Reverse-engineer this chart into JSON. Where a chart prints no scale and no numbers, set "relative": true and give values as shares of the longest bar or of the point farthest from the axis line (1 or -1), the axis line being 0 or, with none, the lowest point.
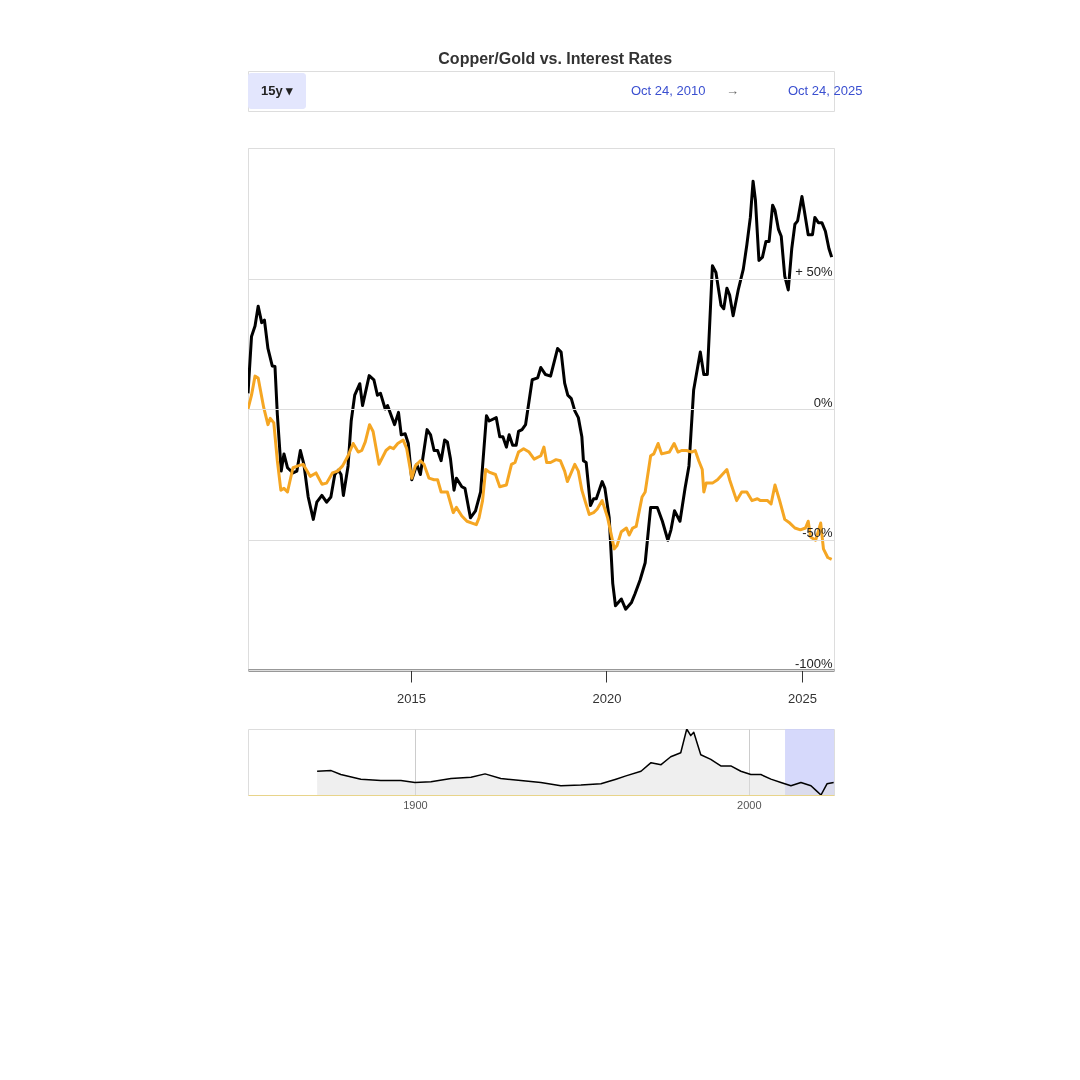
{
  "chart_data": [
    {
      "type": "line",
      "title": "Copper/Gold vs. Interest Rates",
      "annotations": [
        "15y ▾",
        "Oct 24, 2010",
        "→",
        "Oct 24, 2025"
      ],
      "xlim": [
        2010.83,
        2025.82
      ],
      "xticks": [
        2015,
        2020,
        2025
      ],
      "ylim": [
        -100,
        100
      ],
      "yticks": [
        {
          "value": -100,
          "label": "-100%"
        },
        {
          "value": -50,
          "label": "-50%"
        },
        {
          "value": 0,
          "label": "0%"
        },
        {
          "value": 50,
          "label": "+ 50%"
        },
        {
          "value": 100,
          "label": null
        }
      ],
      "grid": "y",
      "series": [
        {
          "color": "#000000",
          "x": [
            2010.83,
            2010.92,
            2011.01,
            2011.09,
            2011.18,
            2011.25,
            2011.34,
            2011.45,
            2011.52,
            2011.58,
            2011.68,
            2011.75,
            2011.84,
            2011.98,
            2012.08,
            2012.17,
            2012.26,
            2012.37,
            2012.5,
            2012.59,
            2012.72,
            2012.84,
            2012.95,
            2013.05,
            2013.14,
            2013.21,
            2013.27,
            2013.39,
            2013.47,
            2013.56,
            2013.69,
            2013.76,
            2013.93,
            2014.05,
            2014.14,
            2014.22,
            2014.34,
            2014.4,
            2014.58,
            2014.68,
            2014.75,
            2014.85,
            2014.93,
            2015.02,
            2015.15,
            2015.24,
            2015.41,
            2015.5,
            2015.59,
            2015.68,
            2015.77,
            2015.86,
            2015.93,
            2016.01,
            2016.1,
            2016.16,
            2016.3,
            2016.38,
            2016.52,
            2016.65,
            2016.78,
            2016.93,
            2017.0,
            2017.18,
            2017.27,
            2017.35,
            2017.44,
            2017.51,
            2017.6,
            2017.69,
            2017.75,
            2017.84,
            2017.93,
            2018.1,
            2018.24,
            2018.32,
            2018.44,
            2018.57,
            2018.75,
            2018.84,
            2018.93,
            2019.01,
            2019.1,
            2019.19,
            2019.28,
            2019.37,
            2019.41,
            2019.48,
            2019.59,
            2019.67,
            2019.74,
            2019.89,
            2019.96,
            2020.07,
            2020.16,
            2020.23,
            2020.38,
            2020.49,
            2020.64,
            2020.73,
            2020.86,
            2020.99,
            2021.13,
            2021.3,
            2021.43,
            2021.57,
            2021.65,
            2021.74,
            2021.88,
            2022.01,
            2022.11,
            2022.23,
            2022.4,
            2022.49,
            2022.58,
            2022.71,
            2022.8,
            2022.93,
            2023.0,
            2023.08,
            2023.15,
            2023.24,
            2023.37,
            2023.5,
            2023.59,
            2023.68,
            2023.75,
            2023.81,
            2023.9,
            2023.99,
            2024.08,
            2024.16,
            2024.25,
            2024.31,
            2024.4,
            2024.47,
            2024.56,
            2024.65,
            2024.74,
            2024.82,
            2024.89,
            2025.0,
            2025.06,
            2025.16,
            2025.27,
            2025.33,
            2025.42,
            2025.51,
            2025.6,
            2025.69,
            2025.76
          ],
          "values": [
            6.0,
            27.8,
            31.8,
            39.4,
            33.1,
            34.1,
            23.2,
            16.5,
            16.3,
            -2.0,
            -23.8,
            -17.2,
            -22.5,
            -24.5,
            -23.8,
            -15.9,
            -21.2,
            -33.7,
            -42.3,
            -35.7,
            -33.1,
            -35.7,
            -33.7,
            -25.1,
            -23.4,
            -25.1,
            -33.1,
            -21.8,
            -4.6,
            5.3,
            9.7,
            1.3,
            12.8,
            11.2,
            5.3,
            6.0,
            0,
            1.3,
            -6.0,
            -1.3,
            -9.9,
            -9.5,
            -13.2,
            -27.1,
            -21.2,
            -25.1,
            -7.9,
            -9.9,
            -15.9,
            -15.9,
            -19.8,
            -11.9,
            -12.6,
            -19.2,
            -31.1,
            -26.5,
            -29.8,
            -30.4,
            -41.7,
            -39.0,
            -31.8,
            -2.6,
            -4.6,
            -3.3,
            -10.6,
            -10.6,
            -14.6,
            -9.9,
            -13.9,
            -13.9,
            -8.6,
            -7.9,
            -6.0,
            11.2,
            11.9,
            15.9,
            13.2,
            12.6,
            23.2,
            21.8,
            9.9,
            5.3,
            4.0,
            -0.7,
            -3.3,
            -10.6,
            -19.8,
            -20.5,
            -37.0,
            -34.4,
            -34.4,
            -27.8,
            -30.4,
            -41.7,
            -66.8,
            -75.4,
            -72.8,
            -76.7,
            -74.1,
            -70.8,
            -65.5,
            -58.9,
            -37.7,
            -37.7,
            -43.0,
            -50.3,
            -46.3,
            -39.0,
            -43.0,
            -30.4,
            -21.8,
            7.3,
            21.8,
            13.2,
            13.2,
            54.9,
            52.3,
            39.7,
            38.4,
            46.3,
            43.7,
            35.7,
            45.6,
            53.6,
            62.8,
            73.4,
            87.3,
            80.0,
            56.9,
            58.2,
            64.2,
            64.2,
            78.1,
            76.1,
            68.8,
            66.2,
            50.9,
            45.6,
            61.5,
            70.8,
            72.1,
            81.4,
            76.1,
            66.8,
            66.8,
            73.4,
            71.4,
            71.4,
            68.1,
            61.5,
            58.2
          ]
        },
        {
          "color": "#f5a623",
          "x": [
            2010.83,
            2010.92,
            2011.01,
            2011.09,
            2011.23,
            2011.34,
            2011.4,
            2011.49,
            2011.58,
            2011.67,
            2011.75,
            2011.84,
            2011.98,
            2012.11,
            2012.24,
            2012.42,
            2012.57,
            2012.72,
            2012.84,
            2012.99,
            2013.12,
            2013.25,
            2013.39,
            2013.52,
            2013.65,
            2013.74,
            2013.83,
            2013.94,
            2014.03,
            2014.18,
            2014.36,
            2014.46,
            2014.55,
            2014.66,
            2014.8,
            2014.89,
            2015.02,
            2015.11,
            2015.24,
            2015.33,
            2015.46,
            2015.59,
            2015.68,
            2015.77,
            2015.93,
            2016.08,
            2016.16,
            2016.3,
            2016.43,
            2016.56,
            2016.67,
            2016.74,
            2016.83,
            2016.91,
            2017.0,
            2017.16,
            2017.27,
            2017.44,
            2017.57,
            2017.66,
            2017.75,
            2017.88,
            2018.02,
            2018.15,
            2018.32,
            2018.4,
            2018.47,
            2018.57,
            2018.71,
            2018.82,
            2018.93,
            2019.0,
            2019.19,
            2019.28,
            2019.37,
            2019.45,
            2019.56,
            2019.67,
            2019.76,
            2019.89,
            2020.03,
            2020.2,
            2020.27,
            2020.38,
            2020.51,
            2020.58,
            2020.67,
            2020.76,
            2020.91,
            2020.99,
            2021.13,
            2021.21,
            2021.32,
            2021.41,
            2021.61,
            2021.73,
            2021.83,
            2021.92,
            2022.05,
            2022.18,
            2022.27,
            2022.36,
            2022.45,
            2022.49,
            2022.55,
            2022.71,
            2022.84,
            2023.08,
            2023.15,
            2023.33,
            2023.46,
            2023.59,
            2023.72,
            2023.86,
            2023.94,
            2024.12,
            2024.21,
            2024.31,
            2024.43,
            2024.56,
            2024.69,
            2024.82,
            2024.96,
            2025.09,
            2025.16,
            2025.22,
            2025.35,
            2025.48,
            2025.55,
            2025.66,
            2025.76
          ],
          "values": [
            0,
            5.3,
            12.6,
            11.9,
            0.7,
            -6.0,
            -3.6,
            -5.3,
            -19.8,
            -31.1,
            -30.4,
            -31.8,
            -22.5,
            -21.8,
            -21.2,
            -25.8,
            -24.5,
            -28.8,
            -28.4,
            -24.5,
            -23.8,
            -21.8,
            -17.9,
            -13.2,
            -16.5,
            -15.9,
            -12.6,
            -6.0,
            -8.6,
            -21.2,
            -15.9,
            -14.6,
            -15.2,
            -13.2,
            -11.9,
            -15.2,
            -26.5,
            -21.8,
            -19.8,
            -21.2,
            -26.5,
            -27.1,
            -27.1,
            -31.8,
            -31.8,
            -39.7,
            -37.7,
            -41.0,
            -43.0,
            -43.7,
            -44.3,
            -41.7,
            -35.1,
            -23.2,
            -24.2,
            -25.1,
            -29.8,
            -29.1,
            -21.2,
            -20.5,
            -16.5,
            -15.2,
            -16.5,
            -19.2,
            -17.9,
            -14.6,
            -20.5,
            -20.5,
            -19.4,
            -19.8,
            -23.8,
            -27.8,
            -21.2,
            -23.8,
            -31.1,
            -35.1,
            -40.4,
            -39.7,
            -38.4,
            -35.1,
            -41.7,
            -53.6,
            -52.3,
            -47.0,
            -45.6,
            -48.3,
            -45.6,
            -45.0,
            -33.7,
            -31.8,
            -17.9,
            -17.2,
            -13.2,
            -17.2,
            -16.5,
            -13.2,
            -16.5,
            -15.9,
            -15.9,
            -16.5,
            -15.9,
            -19.8,
            -23.2,
            -31.8,
            -28.4,
            -28.4,
            -27.1,
            -23.2,
            -27.1,
            -35.1,
            -31.8,
            -31.8,
            -35.1,
            -34.4,
            -35.1,
            -35.1,
            -36.4,
            -29.1,
            -35.1,
            -42.3,
            -43.7,
            -45.6,
            -46.3,
            -45.6,
            -43.0,
            -49.0,
            -50.3,
            -43.7,
            -53.6,
            -56.9,
            -57.6
          ]
        }
      ]
    },
    {
      "type": "area",
      "relative": true,
      "xlim": [
        1850,
        2025.5
      ],
      "xticks": [
        1900,
        2000
      ],
      "grid": "x",
      "bands": [
        {
          "axis": "x",
          "from": 2010.83,
          "to": 2025.5,
          "color": "#ccd0fa"
        }
      ],
      "series": [
        {
          "color": "#000000",
          "x": [
            1870.7,
            1874.9,
            1877.8,
            1883.8,
            1889.8,
            1895.8,
            1900,
            1904.8,
            1910.8,
            1916.8,
            1921,
            1925.7,
            1931.7,
            1937.7,
            1943.7,
            1949.7,
            1955.7,
            1960.2,
            1963.2,
            1967.7,
            1970.7,
            1973.7,
            1976.6,
            1979.6,
            1981.4,
            1982.6,
            1983.5,
            1985.6,
            1988.6,
            1991.6,
            1994.6,
            1997.6,
            2000.6,
            2003.6,
            2006.6,
            2009.6,
            2012.6,
            2015.6,
            2018.6,
            2020.1,
            2021.6,
            2023.4,
            2025.4
          ],
          "values": [
            0.36,
            0.37,
            0.31,
            0.24,
            0.22,
            0.22,
            0.19,
            0.2,
            0.25,
            0.27,
            0.32,
            0.25,
            0.22,
            0.19,
            0.14,
            0.15,
            0.17,
            0.24,
            0.29,
            0.36,
            0.49,
            0.46,
            0.58,
            0.64,
            1,
            0.9,
            0.95,
            0.61,
            0.54,
            0.44,
            0.44,
            0.36,
            0.31,
            0.31,
            0.24,
            0.19,
            0.14,
            0.19,
            0.14,
            0.07,
            0,
            0.17,
            0.19
          ]
        }
      ]
    }
  ]
}
